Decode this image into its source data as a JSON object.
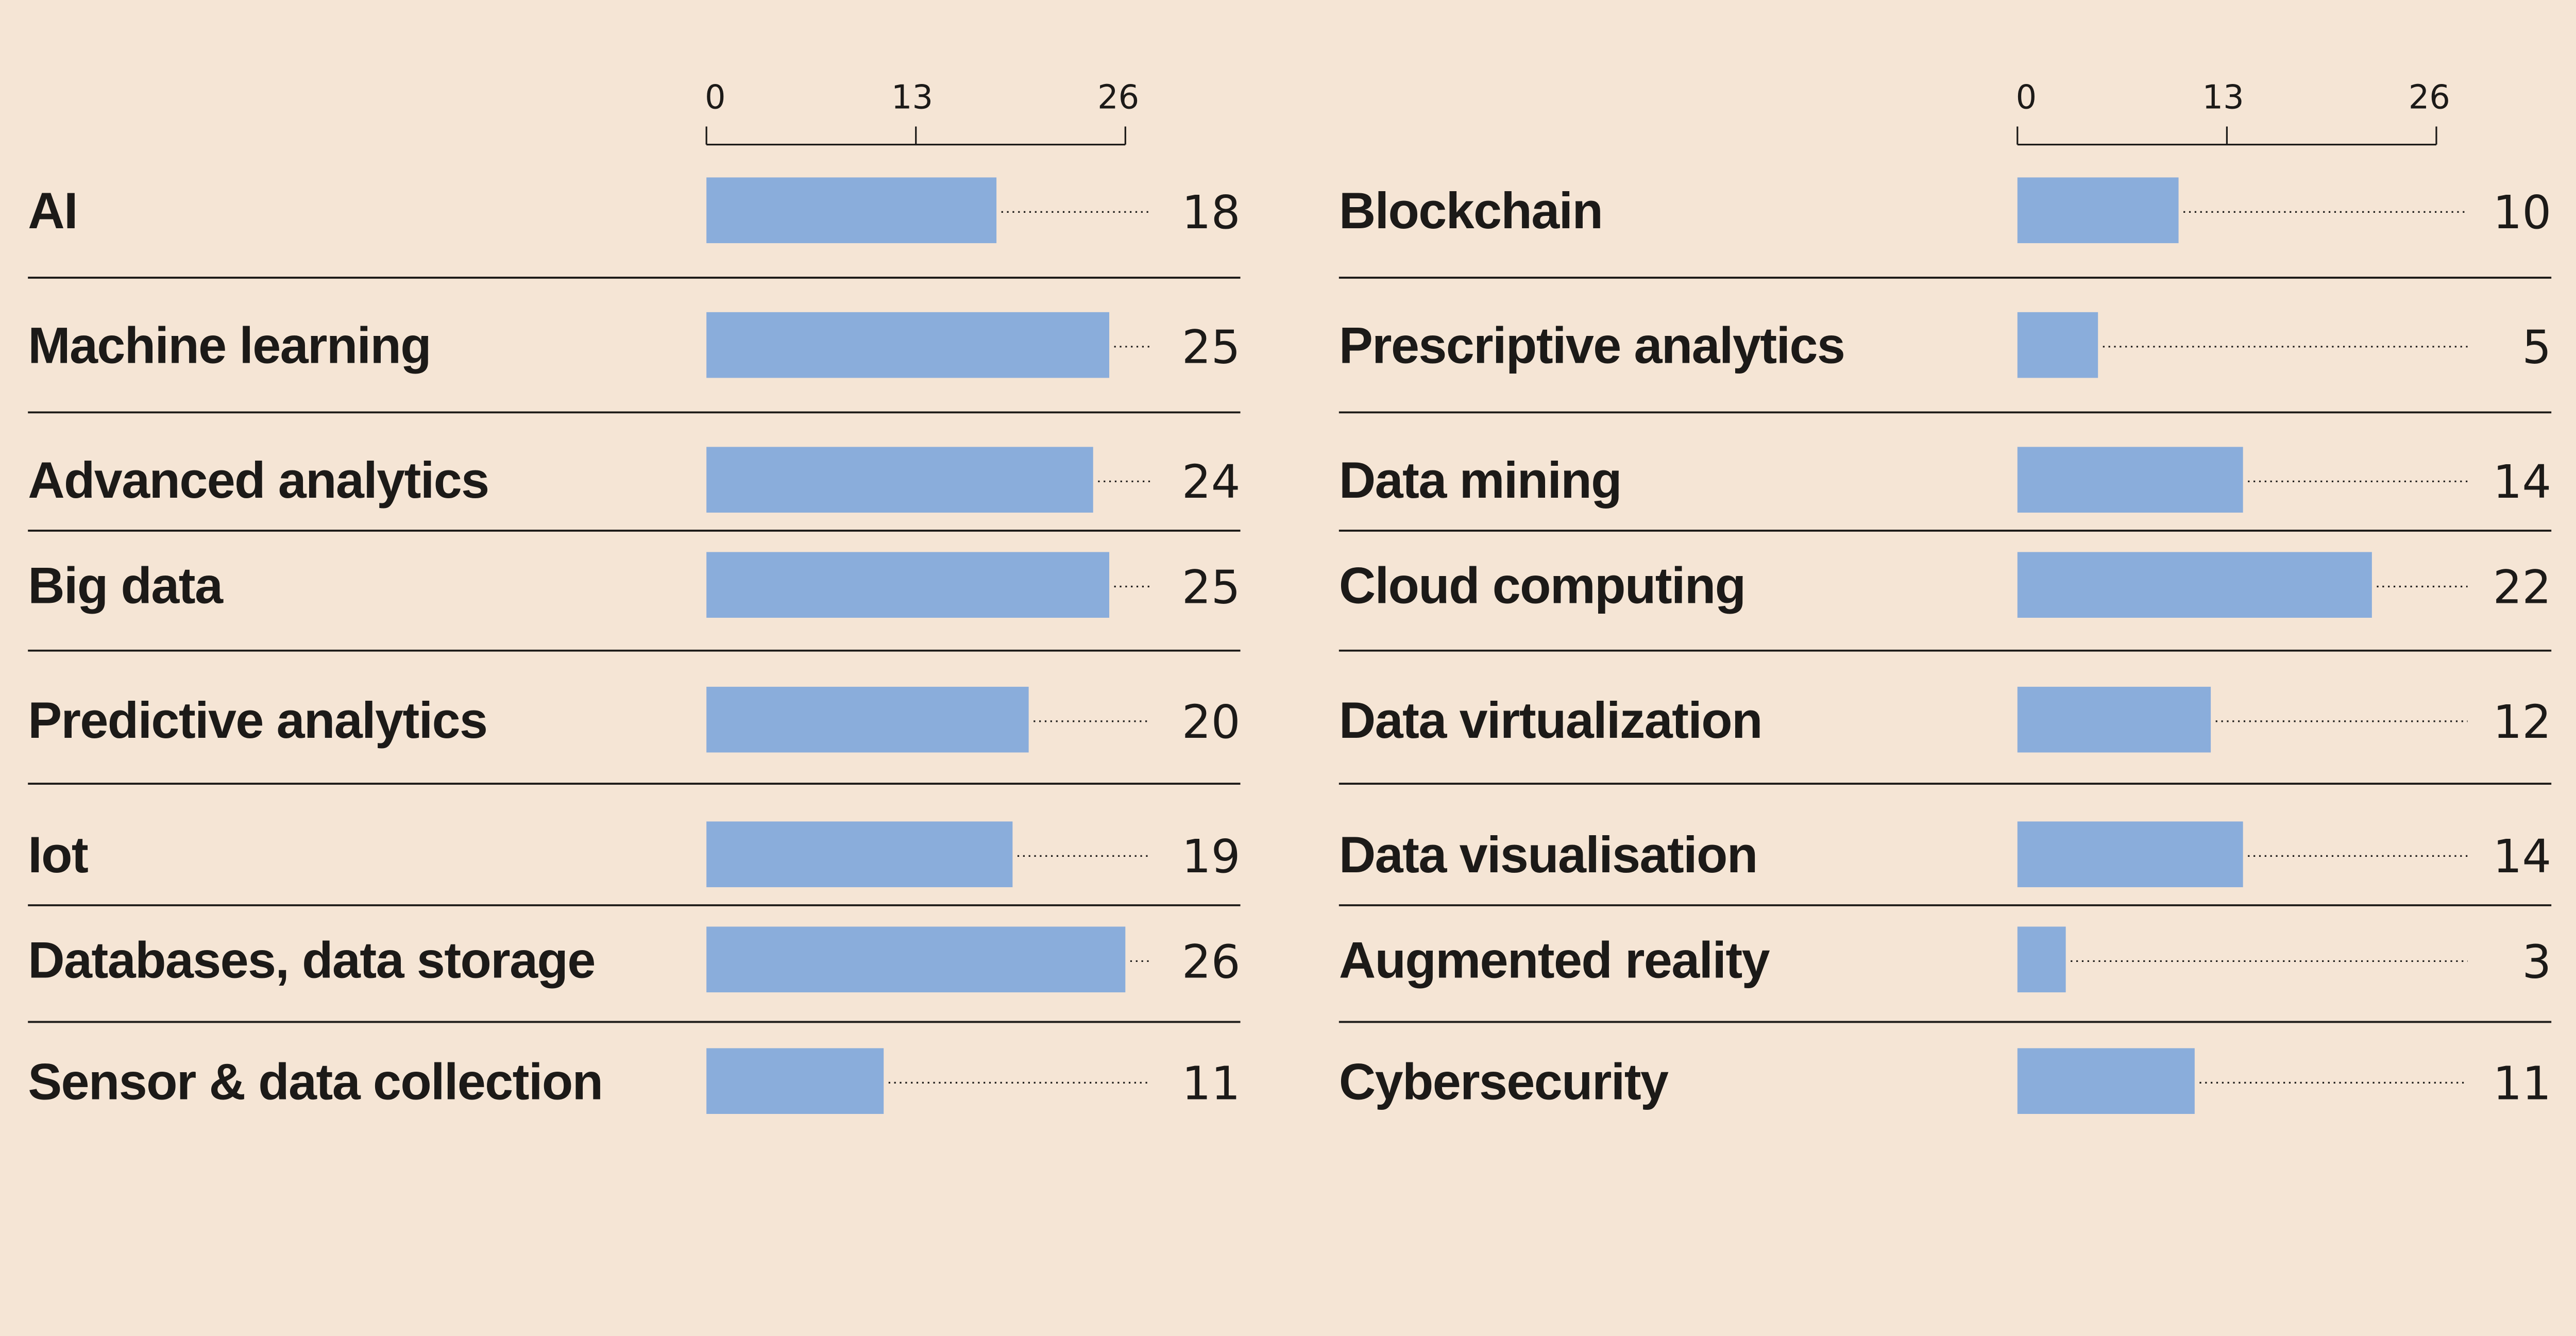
{
  "colors": {
    "background": "#f5e5d5",
    "bar": "#8aaddb",
    "text": "#1c1a18"
  },
  "chart_data": [
    {
      "type": "bar",
      "orientation": "horizontal",
      "xlim": [
        0,
        26
      ],
      "ticks": [
        "0",
        "13",
        "26"
      ],
      "categories": [
        "AI",
        "Machine learning",
        "Advanced analytics",
        "Big data",
        "Predictive analytics",
        "Iot",
        "Databases, data storage",
        "Sensor & data collection"
      ],
      "values": [
        18,
        25,
        24,
        25,
        20,
        19,
        26,
        11
      ]
    },
    {
      "type": "bar",
      "orientation": "horizontal",
      "xlim": [
        0,
        26
      ],
      "ticks": [
        "0",
        "13",
        "26"
      ],
      "categories": [
        "Blockchain",
        "Prescriptive analytics",
        "Data mining",
        "Cloud computing",
        "Data virtualization",
        "Data visualisation",
        "Augmented reality",
        "Cybersecurity"
      ],
      "values": [
        10,
        5,
        14,
        22,
        12,
        14,
        3,
        11
      ]
    }
  ]
}
